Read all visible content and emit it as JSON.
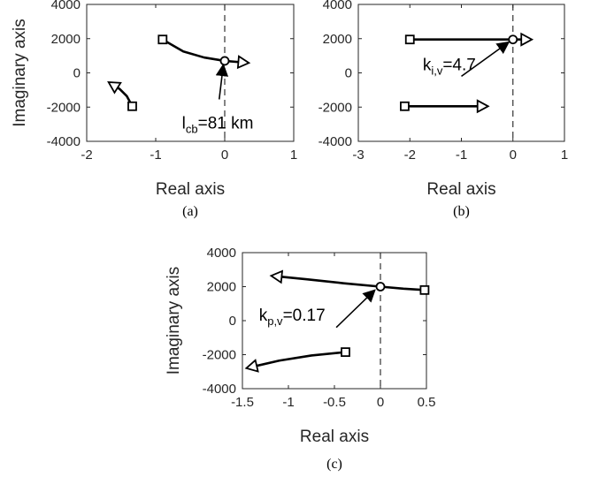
{
  "chart_data": [
    {
      "type": "line",
      "id": "a",
      "caption": "(a)",
      "xlabel": "Real axis",
      "ylabel": "Imaginary axis",
      "xlim": [
        -2,
        1
      ],
      "ylim": [
        -4000,
        4000
      ],
      "xticks": [
        "-2",
        "-1",
        "0",
        "1"
      ],
      "yticks": [
        "4000",
        "2000",
        "0",
        "-2000",
        "-4000"
      ],
      "vline_x": 0,
      "series": [
        {
          "points": [
            [
              -0.9,
              1950
            ],
            [
              -0.6,
              1250
            ],
            [
              -0.3,
              900
            ],
            [
              0,
              700
            ],
            [
              0.3,
              600
            ]
          ],
          "start": "square",
          "end": "triangle"
        },
        {
          "points": [
            [
              -1.34,
              -1950
            ],
            [
              -1.42,
              -1350
            ],
            [
              -1.52,
              -950
            ],
            [
              -1.64,
              -650
            ]
          ],
          "start": "square",
          "end": "triangle"
        }
      ],
      "circles": [
        [
          0,
          700
        ]
      ],
      "annotation": {
        "main": "l",
        "sub": "cb",
        "rest": "=81 km",
        "text_pos": [
          -0.62,
          -3250
        ],
        "arrow_from": [
          -0.08,
          -1550
        ],
        "arrow_to": [
          -0.02,
          480
        ]
      }
    },
    {
      "type": "line",
      "id": "b",
      "caption": "(b)",
      "xlabel": "Real axis",
      "ylabel": "",
      "xlim": [
        -3,
        1
      ],
      "ylim": [
        -4000,
        4000
      ],
      "xticks": [
        "-3",
        "-2",
        "-1",
        "0",
        "1"
      ],
      "yticks": [
        "4000",
        "2000",
        "0",
        "-2000",
        "-4000"
      ],
      "vline_x": 0,
      "series": [
        {
          "points": [
            [
              -2,
              1950
            ],
            [
              0.3,
              1950
            ]
          ],
          "start": "square",
          "end": "triangle"
        },
        {
          "points": [
            [
              -2.1,
              -1950
            ],
            [
              -0.55,
              -1950
            ]
          ],
          "start": "square",
          "end": "triangle"
        }
      ],
      "circles": [
        [
          0,
          1950
        ]
      ],
      "annotation": {
        "main": "k",
        "sub": "i,v",
        "rest": "=4.7",
        "text_pos": [
          -1.75,
          150
        ],
        "arrow_from": [
          -1.0,
          -200
        ],
        "arrow_to": [
          -0.08,
          1800
        ]
      }
    },
    {
      "type": "line",
      "id": "c",
      "caption": "(c)",
      "xlabel": "Real axis",
      "ylabel": "Imaginary axis",
      "xlim": [
        -1.5,
        0.5
      ],
      "ylim": [
        -4000,
        4000
      ],
      "xticks": [
        "-1.5",
        "-1",
        "-0.5",
        "0",
        "0.5"
      ],
      "yticks": [
        "4000",
        "2000",
        "0",
        "-2000",
        "-4000"
      ],
      "vline_x": 0,
      "series": [
        {
          "points": [
            [
              0.48,
              1800
            ],
            [
              0.25,
              1880
            ],
            [
              0,
              2000
            ],
            [
              -0.4,
              2200
            ],
            [
              -0.8,
              2430
            ],
            [
              -1.15,
              2620
            ]
          ],
          "start": "square",
          "end": "triangle"
        },
        {
          "points": [
            [
              -0.38,
              -1850
            ],
            [
              -0.75,
              -2050
            ],
            [
              -1.1,
              -2350
            ],
            [
              -1.42,
              -2750
            ]
          ],
          "start": "square",
          "end": "triangle"
        }
      ],
      "circles": [
        [
          0,
          2000
        ]
      ],
      "annotation": {
        "main": "k",
        "sub": "p,v",
        "rest": "=0.17",
        "text_pos": [
          -1.32,
          0
        ],
        "arrow_from": [
          -0.48,
          -400
        ],
        "arrow_to": [
          -0.06,
          1800
        ]
      }
    }
  ]
}
